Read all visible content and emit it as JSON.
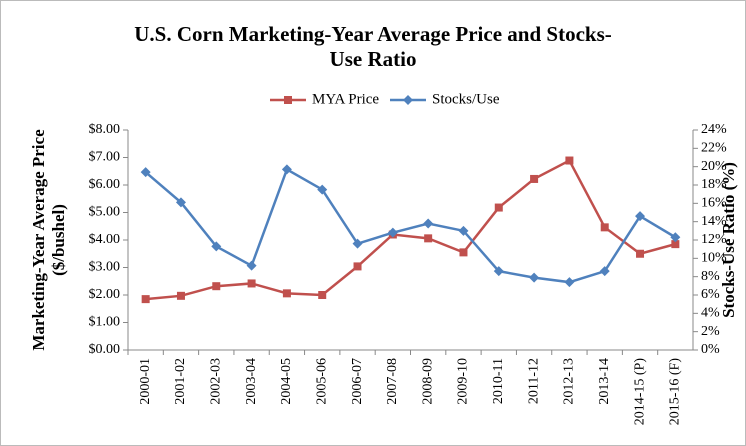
{
  "chart_data": {
    "type": "line",
    "title": "U.S. Corn Marketing-Year Average Price and Stocks-Use Ratio",
    "ylabel": [
      "Marketing-Year Average Price",
      "($/bushel)"
    ],
    "y2label": "Stocks-Use Ratio (%)",
    "categories": [
      "2000-01",
      "2001-02",
      "2002-03",
      "2003-04",
      "2004-05",
      "2005-06",
      "2006-07",
      "2007-08",
      "2008-09",
      "2009-10",
      "2010-11",
      "2011-12",
      "2012-13",
      "2013-14",
      "2014-15 (P)",
      "2015-16 (F)"
    ],
    "series": [
      {
        "name": "MYA Price",
        "color": "#c0504d",
        "marker": "square",
        "values": [
          1.85,
          1.97,
          2.32,
          2.42,
          2.06,
          2.0,
          3.04,
          4.2,
          4.06,
          3.55,
          5.18,
          6.22,
          6.89,
          4.46,
          3.5,
          3.85
        ]
      },
      {
        "name": "Stocks/Use",
        "color": "#4f81bd",
        "marker": "diamond",
        "axis": "y2",
        "values": [
          19.4,
          16.1,
          11.3,
          9.2,
          19.7,
          17.5,
          11.6,
          12.8,
          13.8,
          13.0,
          8.6,
          7.9,
          7.4,
          8.6,
          14.6,
          12.3
        ]
      }
    ],
    "ylim": [
      0,
      8
    ],
    "yticks": [
      {
        "value": 0,
        "label": "$0.00"
      },
      {
        "value": 1,
        "label": "$1.00"
      },
      {
        "value": 2,
        "label": "$2.00"
      },
      {
        "value": 3,
        "label": "$3.00"
      },
      {
        "value": 4,
        "label": "$4.00"
      },
      {
        "value": 5,
        "label": "$5.00"
      },
      {
        "value": 6,
        "label": "$6.00"
      },
      {
        "value": 7,
        "label": "$7.00"
      },
      {
        "value": 8,
        "label": "$8.00"
      }
    ],
    "y2lim": [
      0,
      24
    ],
    "y2ticks": [
      {
        "value": 0,
        "label": "0%"
      },
      {
        "value": 2,
        "label": "2%"
      },
      {
        "value": 4,
        "label": "4%"
      },
      {
        "value": 6,
        "label": "6%"
      },
      {
        "value": 8,
        "label": "8%"
      },
      {
        "value": 10,
        "label": "10%"
      },
      {
        "value": 12,
        "label": "12%"
      },
      {
        "value": 14,
        "label": "14%"
      },
      {
        "value": 16,
        "label": "16%"
      },
      {
        "value": 18,
        "label": "18%"
      },
      {
        "value": 20,
        "label": "20%"
      },
      {
        "value": 22,
        "label": "22%"
      },
      {
        "value": 24,
        "label": "24%"
      }
    ],
    "grid": false
  }
}
